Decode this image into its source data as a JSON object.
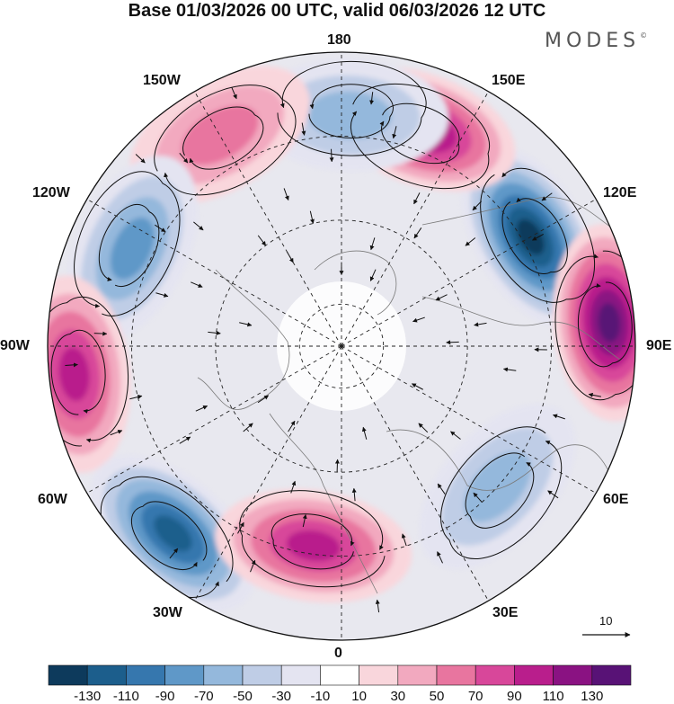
{
  "title": "Base 01/03/2026 00 UTC, valid 06/03/2026 12 UTC",
  "brand": "MODES",
  "brand_mark": "©",
  "longitude_labels": {
    "top": "180",
    "upper_left": "150W",
    "upper_right": "150E",
    "left_upper": "120W",
    "right_upper": "120E",
    "left": "90W",
    "right": "90E",
    "left_lower": "60W",
    "right_lower": "60E",
    "lower_left": "30W",
    "lower_right": "30E",
    "bottom": "0"
  },
  "reference_vector": {
    "label": "10"
  },
  "colorbar": {
    "labels": [
      "-130",
      "-110",
      "-90",
      "-70",
      "-50",
      "-30",
      "-10",
      "10",
      "30",
      "50",
      "70",
      "90",
      "110",
      "130"
    ],
    "colors": [
      "#0d3a5c",
      "#1c5e8c",
      "#3677ae",
      "#5f98c8",
      "#94b8dc",
      "#bfcde6",
      "#e4e4f1",
      "#ffffff",
      "#f9d6dc",
      "#f2a9bf",
      "#e8759f",
      "#d8479a",
      "#b91e8c",
      "#8a1282",
      "#581276"
    ]
  },
  "anomaly_centers": [
    {
      "sign": "negative",
      "value": -135,
      "lon_deg": 120,
      "colat_deg": 52
    },
    {
      "sign": "positive",
      "value": 135,
      "lon_deg": 95,
      "colat_deg": 64
    },
    {
      "sign": "positive",
      "value": 130,
      "lon_deg": 160,
      "colat_deg": 55
    },
    {
      "sign": "negative",
      "value": -70,
      "lon_deg": 178,
      "colat_deg": 55
    },
    {
      "sign": "positive",
      "value": 55,
      "lon_deg": -150,
      "colat_deg": 58
    },
    {
      "sign": "negative",
      "value": -80,
      "lon_deg": -115,
      "colat_deg": 55
    },
    {
      "sign": "positive",
      "value": 105,
      "lon_deg": -84,
      "colat_deg": 64
    },
    {
      "sign": "negative",
      "value": -115,
      "lon_deg": -42,
      "colat_deg": 60
    },
    {
      "sign": "positive",
      "value": 100,
      "lon_deg": -8,
      "colat_deg": 48
    },
    {
      "sign": "negative",
      "value": -70,
      "lon_deg": 48,
      "colat_deg": 50
    }
  ]
}
